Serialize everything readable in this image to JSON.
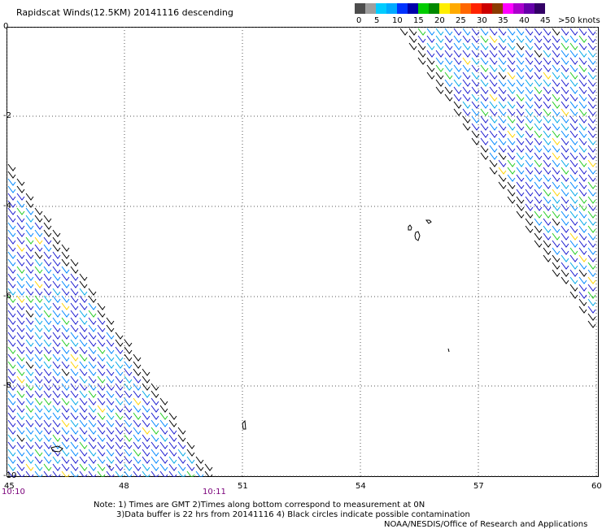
{
  "title": "Rapidscat Winds(12.5KM) 20141116 descending",
  "legend": {
    "colors": [
      "#4d4d4d",
      "#9e9e9e",
      "#00ccff",
      "#00aaff",
      "#0033ff",
      "#0000aa",
      "#00cc00",
      "#008800",
      "#ffee00",
      "#ffaa00",
      "#ff6600",
      "#ff2200",
      "#cc0000",
      "#8b3a00",
      "#ff00ff",
      "#aa00cc",
      "#6600aa",
      "#330066"
    ],
    "labels": [
      "0",
      "5",
      "10",
      "15",
      "20",
      "25",
      "30",
      "35",
      "40",
      "45",
      ">50 knots"
    ]
  },
  "axes": {
    "x_ticks": [
      "45",
      "48",
      "51",
      "54",
      "57",
      "60"
    ],
    "y_ticks": [
      "0",
      "-2",
      "-4",
      "-6",
      "-8",
      "-10"
    ]
  },
  "times": {
    "left": "10:10",
    "right": "10:11"
  },
  "notes": {
    "line1": "Note: 1) Times are GMT 2)Times along bottom correspond to measurement at 0N",
    "line2": "3)Data buffer is 22 hrs from 20141116 4) Black circles indicate possible contamination",
    "line3": "NOAA/NESDIS/Office of Research and Applications"
  }
}
